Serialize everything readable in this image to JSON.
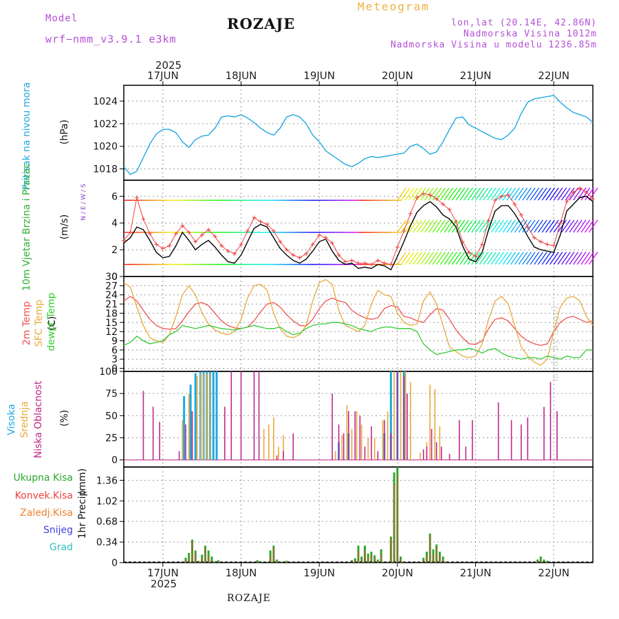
{
  "header": {
    "model_label": "Model",
    "model_version": "wrf−nmm_v3.9.1  e3km",
    "station": "ROZAJE",
    "product": "Meteogram",
    "lonlat": "lon,lat (20.14E, 42.86N)",
    "elevation": "Nadmorska Visina 1012m",
    "model_elevation": "Nadmorska Visina u modelu 1236.85m"
  },
  "footer": {
    "station": "ROZAJE",
    "watermark": "made by Angel"
  },
  "time_axis": {
    "year": "2025",
    "day_labels": [
      "17JUN",
      "18JUN",
      "19JUN",
      "20JUN",
      "21JUN",
      "22JUN"
    ],
    "start_hour": 0,
    "end_hour": 144,
    "day_hours": [
      12,
      36,
      60,
      84,
      108,
      132
    ]
  },
  "colors": {
    "pressure": "#1ea8e0",
    "wind_speed": "#000000",
    "wind_gust": "#f04040",
    "t2m": "#f05050",
    "tsfc": "#e8a838",
    "dewpoint": "#30cc30",
    "cloud_high": "#1ea8e0",
    "cloud_mid": "#e8a838",
    "cloud_low": "#c0258c",
    "precip_total": "#2aa82a",
    "precip_conv": "#f04040",
    "precip_frozen": "#f08030",
    "snow": "#4040e0",
    "graupel": "#30c0c0",
    "axis_label": "#8a3ec8"
  },
  "chart_data": [
    {
      "type": "line",
      "id": "pressure",
      "title": "Pritisak na nivou mora",
      "ylabel": "(hPa)",
      "ylim": [
        1017,
        1025.4
      ],
      "yticks": [
        1018,
        1020,
        1022,
        1024
      ],
      "x": [
        0,
        2,
        4,
        6,
        8,
        10,
        12,
        14,
        16,
        18,
        20,
        22,
        24,
        26,
        28,
        30,
        32,
        34,
        36,
        38,
        40,
        42,
        44,
        46,
        48,
        50,
        52,
        54,
        56,
        58,
        60,
        62,
        64,
        66,
        68,
        70,
        72,
        74,
        76,
        78,
        80,
        82,
        84,
        86,
        88,
        90,
        92,
        94,
        96,
        98,
        100,
        102,
        104,
        106,
        108,
        110,
        112,
        114,
        116,
        118,
        120,
        122,
        124,
        126,
        128,
        130,
        132,
        134,
        136,
        138,
        140,
        142,
        144
      ],
      "series": [
        {
          "name": "MSLP",
          "values": [
            1018.2,
            1017.5,
            1017.8,
            1019.0,
            1020.2,
            1021.1,
            1021.5,
            1021.5,
            1021.2,
            1020.4,
            1019.9,
            1020.6,
            1020.9,
            1021.0,
            1021.6,
            1022.6,
            1022.7,
            1022.6,
            1022.8,
            1022.5,
            1022.1,
            1021.6,
            1021.2,
            1021.0,
            1021.6,
            1022.6,
            1022.8,
            1022.6,
            1022.0,
            1021.0,
            1020.4,
            1019.6,
            1019.2,
            1018.8,
            1018.4,
            1018.2,
            1018.5,
            1018.9,
            1019.1,
            1019.0,
            1019.1,
            1019.2,
            1019.3,
            1019.4,
            1020.0,
            1020.2,
            1019.8,
            1019.3,
            1019.5,
            1020.4,
            1021.5,
            1022.5,
            1022.6,
            1021.9,
            1021.6,
            1021.3,
            1021.0,
            1020.7,
            1020.6,
            1021.0,
            1021.6,
            1022.9,
            1023.9,
            1024.2,
            1024.3,
            1024.4,
            1024.5,
            1023.9,
            1023.4,
            1023.0,
            1022.8,
            1022.6,
            1022.1
          ]
        }
      ]
    },
    {
      "type": "line",
      "id": "wind",
      "title": "10m Vjetar Brzina i Pravac",
      "ylabel": "(m/s)",
      "ylim": [
        0,
        7.2
      ],
      "yticks": [
        0,
        2,
        4,
        6
      ],
      "compass": "N / E / W / S",
      "barb_rows_ms": [
        0.9,
        3.3,
        5.7
      ],
      "x": [
        0,
        2,
        4,
        6,
        8,
        10,
        12,
        14,
        16,
        18,
        20,
        22,
        24,
        26,
        28,
        30,
        32,
        34,
        36,
        38,
        40,
        42,
        44,
        46,
        48,
        50,
        52,
        54,
        56,
        58,
        60,
        62,
        64,
        66,
        68,
        70,
        72,
        74,
        76,
        78,
        80,
        82,
        84,
        86,
        88,
        90,
        92,
        94,
        96,
        98,
        100,
        102,
        104,
        106,
        108,
        110,
        112,
        114,
        116,
        118,
        120,
        122,
        124,
        126,
        128,
        130,
        132,
        134,
        136,
        138,
        140,
        142,
        144
      ],
      "series": [
        {
          "name": "speed",
          "values": [
            2.5,
            2.9,
            3.7,
            3.5,
            2.7,
            1.8,
            1.4,
            1.5,
            2.3,
            3.3,
            2.7,
            2.0,
            2.4,
            2.7,
            2.2,
            1.6,
            1.1,
            1.0,
            1.6,
            2.6,
            3.6,
            3.9,
            3.7,
            2.9,
            2.1,
            1.6,
            1.2,
            1.0,
            1.3,
            1.9,
            2.6,
            2.8,
            1.9,
            1.2,
            0.9,
            1.0,
            0.6,
            0.7,
            0.6,
            0.9,
            0.8,
            0.5,
            1.5,
            2.6,
            3.8,
            4.8,
            5.3,
            5.6,
            5.2,
            4.6,
            4.3,
            3.7,
            2.3,
            1.3,
            1.1,
            1.8,
            3.5,
            4.9,
            5.3,
            5.3,
            4.7,
            3.9,
            3.0,
            2.2,
            2.0,
            1.9,
            1.8,
            3.1,
            4.9,
            5.4,
            5.9,
            6.0,
            5.6
          ]
        },
        {
          "name": "gust",
          "values": [
            2.7,
            3.3,
            5.9,
            4.3,
            3.2,
            2.4,
            2.1,
            2.3,
            3.2,
            3.8,
            3.3,
            2.6,
            3.1,
            3.5,
            3.0,
            2.3,
            1.9,
            1.7,
            2.4,
            3.4,
            4.4,
            4.1,
            3.9,
            3.4,
            2.6,
            2.0,
            1.6,
            1.4,
            1.7,
            2.4,
            3.1,
            2.9,
            2.5,
            1.6,
            1.1,
            1.2,
            1.0,
            1.0,
            0.9,
            1.2,
            1.0,
            0.9,
            2.2,
            3.4,
            4.7,
            5.9,
            6.2,
            6.1,
            5.8,
            5.4,
            5.0,
            4.1,
            2.6,
            1.8,
            1.5,
            2.4,
            4.2,
            5.7,
            6.0,
            6.1,
            5.4,
            4.6,
            3.7,
            2.9,
            2.6,
            2.4,
            2.3,
            4.0,
            5.6,
            6.3,
            6.6,
            6.3,
            5.8
          ]
        }
      ]
    },
    {
      "type": "line",
      "id": "temperature",
      "title": "2m Temp / SFC Temp / dewpt Temp",
      "ylabel": "(C)",
      "ylim": [
        -1,
        30
      ],
      "yticks": [
        0,
        3,
        6,
        9,
        12,
        15,
        18,
        21,
        24,
        27,
        30
      ],
      "x": [
        0,
        2,
        4,
        6,
        8,
        10,
        12,
        14,
        16,
        18,
        20,
        22,
        24,
        26,
        28,
        30,
        32,
        34,
        36,
        38,
        40,
        42,
        44,
        46,
        48,
        50,
        52,
        54,
        56,
        58,
        60,
        62,
        64,
        66,
        68,
        70,
        72,
        74,
        76,
        78,
        80,
        82,
        84,
        86,
        88,
        90,
        92,
        94,
        96,
        98,
        100,
        102,
        104,
        106,
        108,
        110,
        112,
        114,
        116,
        118,
        120,
        122,
        124,
        126,
        128,
        130,
        132,
        134,
        136,
        138,
        140,
        142,
        144
      ],
      "series": [
        {
          "name": "2m Temp",
          "values": [
            22.0,
            23.5,
            22.0,
            19.0,
            16.0,
            14.0,
            13.0,
            12.8,
            13.0,
            15.5,
            18.5,
            21.0,
            21.5,
            20.5,
            18.0,
            15.5,
            14.0,
            13.2,
            13.0,
            13.5,
            15.5,
            18.5,
            21.0,
            21.5,
            20.0,
            17.5,
            15.5,
            14.0,
            13.8,
            16.0,
            19.5,
            22.0,
            23.0,
            22.0,
            21.5,
            19.0,
            17.5,
            16.5,
            16.0,
            16.5,
            19.5,
            20.5,
            20.0,
            17.0,
            16.5,
            15.5,
            15.0,
            17.5,
            19.5,
            19.0,
            16.0,
            12.5,
            10.0,
            8.0,
            7.8,
            9.0,
            13.0,
            16.0,
            16.5,
            15.5,
            13.0,
            10.5,
            9.0,
            8.0,
            7.5,
            8.0,
            12.0,
            15.0,
            16.5,
            17.0,
            16.0,
            15.0,
            15.5
          ]
        },
        {
          "name": "SFC Temp",
          "values": [
            28.0,
            26.5,
            20.0,
            14.0,
            10.0,
            9.0,
            8.5,
            11.0,
            17.0,
            24.0,
            27.0,
            24.0,
            18.0,
            14.5,
            12.5,
            11.5,
            11.0,
            12.0,
            16.0,
            23.0,
            27.0,
            27.5,
            25.5,
            18.0,
            13.0,
            10.5,
            10.0,
            11.0,
            14.0,
            22.0,
            28.0,
            29.0,
            27.5,
            19.0,
            14.0,
            13.0,
            12.0,
            14.0,
            21.0,
            25.5,
            24.0,
            23.5,
            18.0,
            15.0,
            14.0,
            14.5,
            22.0,
            25.0,
            21.0,
            14.0,
            7.0,
            5.5,
            4.0,
            3.5,
            4.0,
            8.0,
            16.0,
            22.0,
            23.5,
            21.0,
            14.0,
            7.0,
            4.0,
            2.0,
            1.0,
            3.0,
            12.0,
            20.0,
            23.0,
            23.5,
            22.0,
            17.0,
            14.0
          ]
        },
        {
          "name": "dewpt Temp",
          "values": [
            7.5,
            8.5,
            10.5,
            9.0,
            8.0,
            8.5,
            9.0,
            11.0,
            12.0,
            14.0,
            13.5,
            13.0,
            13.5,
            14.0,
            13.5,
            13.0,
            12.8,
            12.5,
            13.0,
            13.5,
            14.0,
            13.5,
            13.0,
            13.0,
            13.5,
            12.0,
            11.0,
            11.5,
            13.0,
            14.0,
            14.5,
            14.5,
            15.0,
            15.0,
            14.5,
            14.0,
            13.0,
            12.5,
            12.0,
            13.0,
            13.5,
            13.5,
            13.0,
            13.0,
            13.0,
            12.0,
            8.0,
            6.0,
            4.5,
            5.0,
            5.5,
            6.0,
            6.0,
            6.5,
            6.0,
            5.0,
            6.0,
            6.5,
            5.0,
            4.0,
            3.5,
            3.0,
            3.5,
            3.5,
            3.0,
            4.0,
            3.5,
            3.0,
            4.0,
            3.5,
            3.5,
            6.0,
            6.0
          ]
        }
      ]
    },
    {
      "type": "bar",
      "id": "clouds",
      "title": "Visoka / Srednja / Niska Oblacnost",
      "ylabel": "(%)",
      "ylim": [
        -8,
        100
      ],
      "yticks": [
        0,
        25,
        50,
        75,
        100
      ],
      "high": {
        "x": [
          18.5,
          20.5,
          22,
          23.5,
          24.5,
          25.5,
          26.5,
          27.5,
          28.5,
          66,
          69,
          80,
          82,
          84,
          86
        ],
        "values": [
          72,
          85,
          98,
          100,
          100,
          100,
          100,
          100,
          100,
          20,
          30,
          30,
          100,
          100,
          100
        ]
      },
      "mid": {
        "x": [
          18,
          20,
          21,
          22.5,
          23.5,
          24.5,
          25.5,
          26.5,
          43,
          44.5,
          46,
          47.5,
          49,
          65,
          67,
          68.5,
          70,
          71.5,
          73,
          75,
          77,
          79.5,
          81,
          83,
          85,
          86.5,
          88,
          91,
          93,
          94,
          95.5,
          97
        ],
        "values": [
          45,
          75,
          55,
          95,
          98,
          98,
          98,
          98,
          35,
          40,
          48,
          15,
          28,
          10,
          28,
          62,
          35,
          55,
          40,
          25,
          25,
          45,
          55,
          100,
          100,
          100,
          88,
          8,
          20,
          85,
          80,
          38
        ]
      },
      "low": {
        "x": [
          6,
          9,
          11,
          17,
          19,
          21,
          31,
          33,
          36,
          40,
          41.5,
          47,
          49,
          52,
          64,
          66,
          67.5,
          69,
          71,
          72.5,
          74,
          76,
          78,
          80,
          82,
          84,
          86,
          87,
          92,
          93,
          94.5,
          96,
          97.5,
          100,
          103,
          105,
          107,
          115,
          119,
          122,
          124,
          129,
          131,
          133
        ],
        "values": [
          78,
          60,
          43,
          10,
          40,
          55,
          60,
          100,
          100,
          100,
          100,
          5,
          10,
          30,
          75,
          40,
          30,
          55,
          55,
          50,
          15,
          38,
          10,
          45,
          30,
          100,
          95,
          75,
          12,
          15,
          35,
          20,
          15,
          7,
          45,
          15,
          45,
          65,
          45,
          40,
          48,
          60,
          88,
          55
        ]
      }
    },
    {
      "type": "bar",
      "id": "precip",
      "title": "1hr Precip",
      "ylabel": "(mm)",
      "ylim": [
        0,
        1.58
      ],
      "yticks": [
        0,
        0.34,
        0.68,
        1.02,
        1.36
      ],
      "x": [
        19,
        20,
        21,
        22,
        23,
        24,
        25,
        26,
        27,
        28,
        29,
        41,
        42,
        45,
        46,
        47,
        48,
        50,
        70,
        71,
        72,
        73,
        74,
        75,
        76,
        77,
        78,
        79,
        82,
        83,
        84,
        85,
        86,
        92,
        93,
        94,
        95,
        96,
        97,
        98,
        99,
        100,
        127,
        128,
        129,
        130
      ],
      "total": [
        0.08,
        0.16,
        0.38,
        0.2,
        0.03,
        0.13,
        0.28,
        0.2,
        0.1,
        0.02,
        0.04,
        0.04,
        0.02,
        0.2,
        0.28,
        0.05,
        0.02,
        0.03,
        0.04,
        0.07,
        0.28,
        0.1,
        0.28,
        0.15,
        0.18,
        0.12,
        0.05,
        0.22,
        0.43,
        1.49,
        1.58,
        0.1,
        0.02,
        0.08,
        0.18,
        0.48,
        0.22,
        0.3,
        0.18,
        0.1,
        0.02,
        0.01,
        0.05,
        0.1,
        0.05,
        0.03
      ],
      "conv": [
        0.04,
        0.08,
        0.35,
        0.15,
        0.02,
        0.08,
        0.25,
        0.12,
        0.05,
        0.01,
        0.02,
        0.02,
        0.01,
        0.12,
        0.25,
        0.03,
        0.01,
        0.01,
        0.02,
        0.04,
        0.2,
        0.06,
        0.2,
        0.1,
        0.12,
        0.08,
        0.03,
        0.15,
        0.4,
        1.3,
        1.45,
        0.06,
        0.01,
        0.05,
        0.12,
        0.46,
        0.15,
        0.25,
        0.12,
        0.06,
        0.01,
        0.0,
        0.02,
        0.05,
        0.02,
        0.01
      ],
      "legend": [
        "Ukupna  Kisa",
        "Konvek.Kisa",
        "Zaledj.Kisa",
        "Snijeg",
        "Grad"
      ]
    }
  ]
}
